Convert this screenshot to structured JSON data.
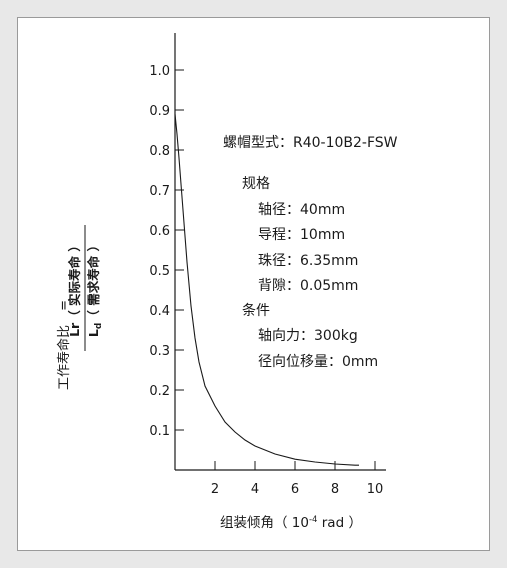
{
  "colors": {
    "background": "#e8e8e8",
    "panel": "#ffffff",
    "ink": "#1a1a1a"
  },
  "chart_data": {
    "type": "line",
    "xlabel_main": "组装倾角",
    "xlabel_unit_open": "（ 10",
    "xlabel_unit_exp": "-4",
    "xlabel_unit_close": " rad ）",
    "ylabel_left": "工作寿命比",
    "ylabel_eq": "=",
    "ylabel_num": "Lr（ 实际寿命 ）",
    "ylabel_den_L": "L",
    "ylabel_den_sub": "d",
    "ylabel_den_text": "（ 需求寿命 ）",
    "xlim": [
      0,
      10
    ],
    "ylim": [
      0,
      1.0
    ],
    "x_ticks": [
      2,
      4,
      6,
      8,
      10
    ],
    "y_ticks": [
      "0.1",
      "0.2",
      "0.3",
      "0.4",
      "0.5",
      "0.6",
      "0.7",
      "0.8",
      "0.9",
      "1.0"
    ],
    "grid": false,
    "series": [
      {
        "x": [
          0,
          0.1,
          0.2,
          0.4,
          0.6,
          0.8,
          1.0,
          1.2,
          1.5,
          1.8,
          2.0,
          2.5,
          3.0,
          3.5,
          4.0,
          5.0,
          6.0,
          7.0,
          8.0,
          9.0,
          9.2
        ],
        "y": [
          0.89,
          0.84,
          0.78,
          0.65,
          0.52,
          0.41,
          0.33,
          0.27,
          0.21,
          0.18,
          0.16,
          0.12,
          0.095,
          0.075,
          0.06,
          0.04,
          0.027,
          0.02,
          0.015,
          0.012,
          0.012
        ]
      }
    ]
  },
  "spec": {
    "model": "螺帽型式：R40-10B2-FSW",
    "spec_heading": "规格",
    "shaft": "轴径：40mm",
    "lead": "导程：10mm",
    "ball": "珠径：6.35mm",
    "backlash": "背隙：0.05mm",
    "cond_heading": "条件",
    "axial": "轴向力：300kg",
    "radial": "径向位移量：0mm"
  }
}
